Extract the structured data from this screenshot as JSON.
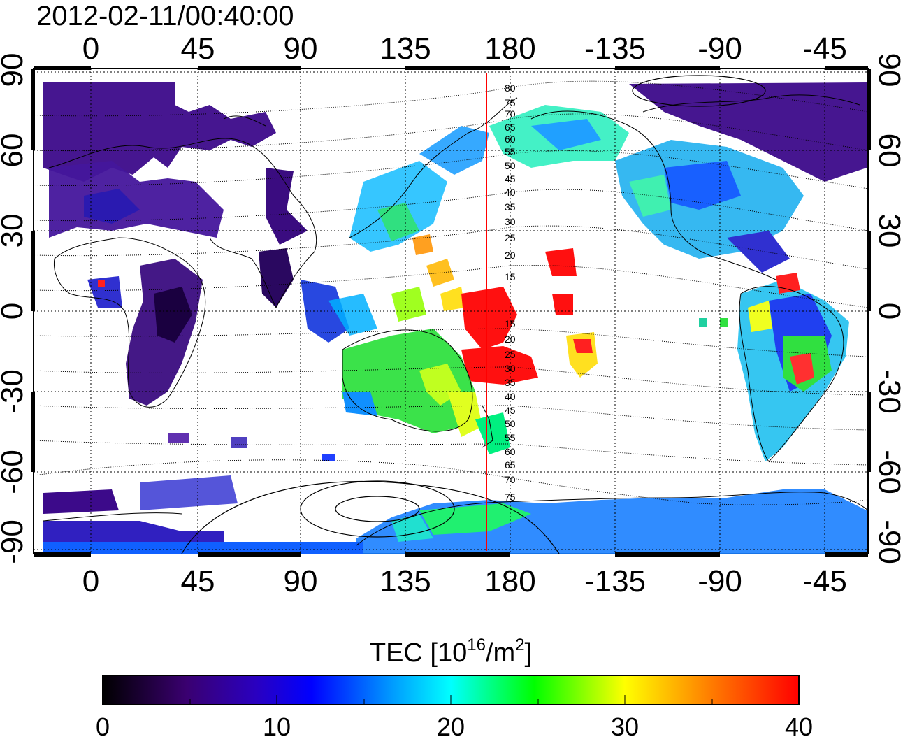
{
  "timestamp": "2012-02-11/00:40:00",
  "top_lon_labels": [
    "0",
    "45",
    "90",
    "135",
    "180",
    "-135",
    "-90",
    "-45"
  ],
  "bottom_lon_labels": [
    "0",
    "45",
    "90",
    "135",
    "180",
    "-135",
    "-90",
    "-45"
  ],
  "left_lat_labels": [
    "90",
    "60",
    "30",
    "0",
    "-30",
    "-60",
    "-90"
  ],
  "right_lat_labels": [
    "90",
    "60",
    "30",
    "0",
    "-30",
    "-60",
    "-90"
  ],
  "contour_labels_upper": [
    "80",
    "75",
    "70",
    "65",
    "60",
    "55",
    "50",
    "45",
    "40",
    "35",
    "30",
    "25",
    "20",
    "15"
  ],
  "contour_labels_lower": [
    "15",
    "20",
    "25",
    "30",
    "35",
    "40",
    "45",
    "50",
    "55",
    "60",
    "65",
    "70",
    "75"
  ],
  "colorbar": {
    "title_prefix": "TEC  [10",
    "title_exp1": "16",
    "title_mid": "/m",
    "title_exp2": "2",
    "title_suffix": "]",
    "ticks": [
      "0",
      "10",
      "20",
      "30",
      "40"
    ],
    "min": 0,
    "max": 40,
    "colors": [
      "#000000",
      "#400080",
      "#0000ff",
      "#00ffff",
      "#00ff00",
      "#ffff00",
      "#ff8000",
      "#ff0000"
    ]
  },
  "marker_line": {
    "longitude": 170,
    "color": "#ff0000"
  },
  "colors": {
    "land_outline": "#000000",
    "grid": "#000000"
  }
}
